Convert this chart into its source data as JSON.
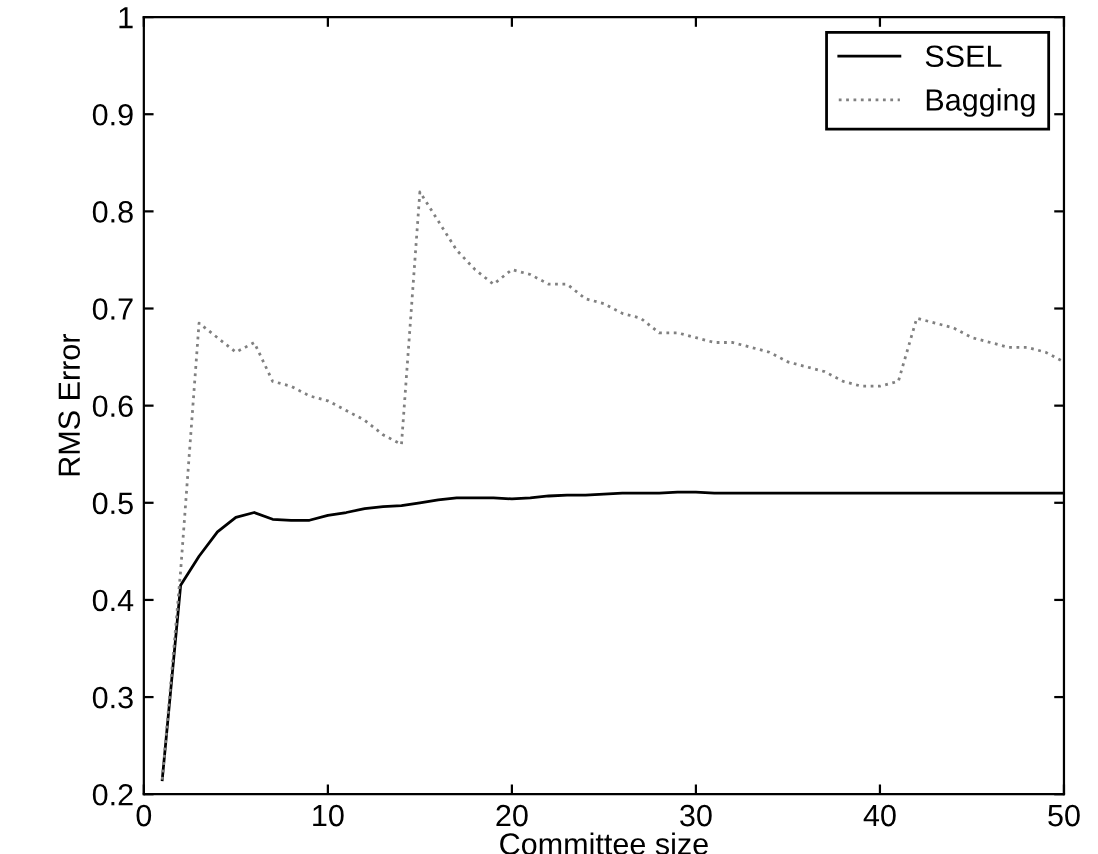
{
  "chart_data": {
    "type": "line",
    "xlabel": "Committee size",
    "ylabel": "RMS Error",
    "x": [
      1,
      2,
      3,
      4,
      5,
      6,
      7,
      8,
      9,
      10,
      11,
      12,
      13,
      14,
      15,
      16,
      17,
      18,
      19,
      20,
      21,
      22,
      23,
      24,
      25,
      26,
      27,
      28,
      29,
      30,
      31,
      32,
      33,
      34,
      35,
      36,
      37,
      38,
      39,
      40,
      41,
      42,
      43,
      44,
      45,
      46,
      47,
      48,
      49,
      50
    ],
    "series": [
      {
        "name": "SSEL",
        "color": "#000000",
        "line_style": "solid",
        "values": [
          0.215,
          0.415,
          0.445,
          0.47,
          0.485,
          0.49,
          0.483,
          0.482,
          0.482,
          0.487,
          0.49,
          0.494,
          0.496,
          0.497,
          0.5,
          0.503,
          0.505,
          0.505,
          0.505,
          0.504,
          0.505,
          0.507,
          0.508,
          0.508,
          0.509,
          0.51,
          0.51,
          0.51,
          0.511,
          0.511,
          0.51,
          0.51,
          0.51,
          0.51,
          0.51,
          0.51,
          0.51,
          0.51,
          0.51,
          0.51,
          0.51,
          0.51,
          0.51,
          0.51,
          0.51,
          0.51,
          0.51,
          0.51,
          0.51,
          0.51
        ]
      },
      {
        "name": "Bagging",
        "color": "#808080",
        "line_style": "dotted",
        "values": [
          0.215,
          0.43,
          0.685,
          0.67,
          0.655,
          0.665,
          0.625,
          0.62,
          0.61,
          0.605,
          0.595,
          0.585,
          0.57,
          0.56,
          0.82,
          0.79,
          0.76,
          0.74,
          0.725,
          0.74,
          0.735,
          0.725,
          0.725,
          0.71,
          0.705,
          0.695,
          0.69,
          0.675,
          0.675,
          0.67,
          0.665,
          0.665,
          0.66,
          0.655,
          0.645,
          0.64,
          0.635,
          0.625,
          0.62,
          0.62,
          0.625,
          0.69,
          0.685,
          0.68,
          0.67,
          0.665,
          0.66,
          0.66,
          0.655,
          0.645
        ]
      }
    ],
    "xlim": [
      0,
      50
    ],
    "xticks": [
      0,
      10,
      20,
      30,
      40,
      50
    ],
    "ylim": [
      0.2,
      1
    ],
    "yticks": [
      0.2,
      0.3,
      0.4,
      0.5,
      0.6,
      0.7,
      0.8,
      0.9,
      1
    ],
    "legend": "top right",
    "grid": false
  }
}
